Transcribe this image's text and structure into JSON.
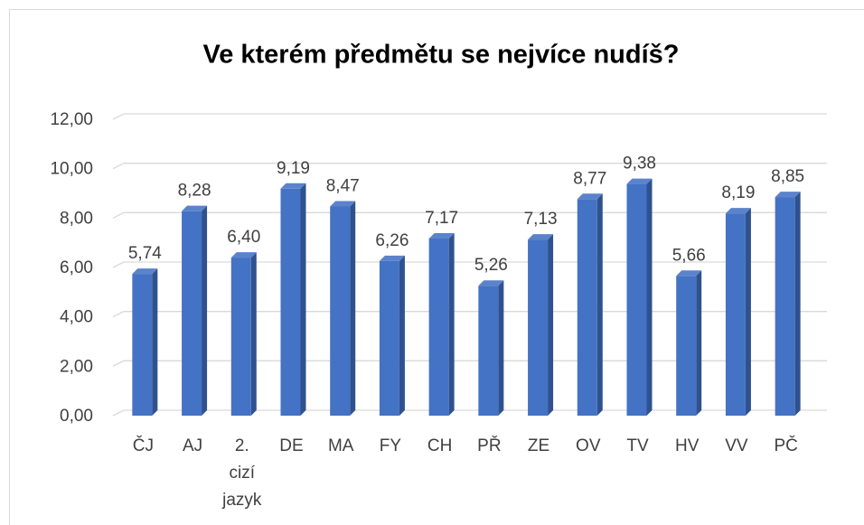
{
  "chart_data": {
    "type": "bar",
    "title": "Ve kterém předmětu se nejvíce nudíš?",
    "categories": [
      "ČJ",
      "AJ",
      "2. cizí jazyk",
      "DE",
      "MA",
      "FY",
      "CH",
      "PŘ",
      "ZE",
      "OV",
      "TV",
      "HV",
      "VV",
      "PČ"
    ],
    "values": [
      5.74,
      8.28,
      6.4,
      9.19,
      8.47,
      6.26,
      7.17,
      5.26,
      7.13,
      8.77,
      9.38,
      5.66,
      8.19,
      8.85
    ],
    "value_labels": [
      "5,74",
      "8,28",
      "6,40",
      "9,19",
      "8,47",
      "6,26",
      "7,17",
      "5,26",
      "7,13",
      "8,77",
      "9,38",
      "5,66",
      "8,19",
      "8,85"
    ],
    "color": "#4472c4",
    "ylim": [
      0,
      12
    ],
    "yticks": [
      {
        "value": 0,
        "label": "0,00"
      },
      {
        "value": 2,
        "label": "2,00"
      },
      {
        "value": 4,
        "label": "4,00"
      },
      {
        "value": 6,
        "label": "6,00"
      },
      {
        "value": 8,
        "label": "8,00"
      },
      {
        "value": 10,
        "label": "10,00"
      },
      {
        "value": 12,
        "label": "12,00"
      }
    ],
    "grid": true
  }
}
